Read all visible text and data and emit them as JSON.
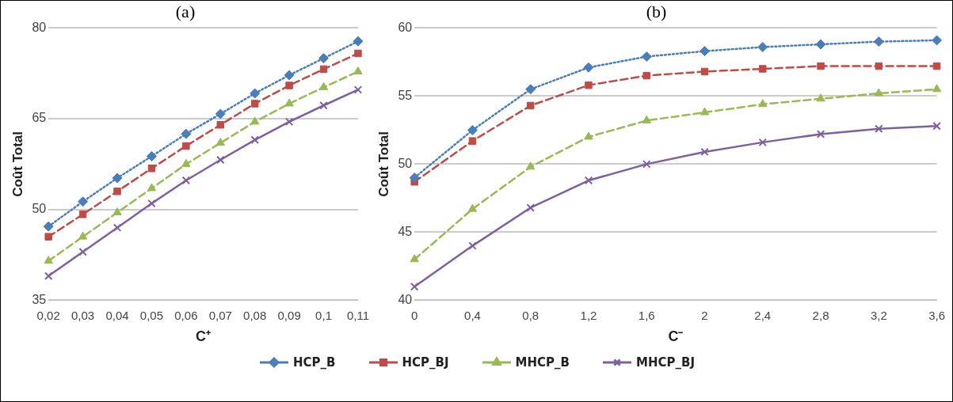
{
  "chart_data": [
    {
      "type": "line",
      "title": "(a)",
      "xlabel": "C⁺",
      "ylabel": "Coût Total",
      "categories": [
        "0,02",
        "0,03",
        "0,04",
        "0,05",
        "0,06",
        "0,07",
        "0,08",
        "0,09",
        "0,1",
        "0,11"
      ],
      "series": [
        {
          "name": "HCP_B",
          "color": "#4a7ebb",
          "marker": "diamond",
          "line_style": "dotted",
          "values": [
            47.2,
            51.3,
            55.2,
            58.8,
            62.5,
            65.8,
            69.2,
            72.2,
            75,
            77.8
          ]
        },
        {
          "name": "HCP_BJ",
          "color": "#be4b48",
          "marker": "square",
          "line_style": "dashed",
          "values": [
            45.5,
            49.2,
            53,
            56.8,
            60.5,
            64,
            67.5,
            70.5,
            73.2,
            75.8
          ]
        },
        {
          "name": "MHCP_B",
          "color": "#98b954",
          "marker": "triangle",
          "line_style": "dashed",
          "values": [
            41.5,
            45.5,
            49.5,
            53.5,
            57.5,
            61,
            64.5,
            67.5,
            70.2,
            72.8
          ]
        },
        {
          "name": "MHCP_BJ",
          "color": "#7d60a0",
          "marker": "cross",
          "line_style": "solid",
          "values": [
            39,
            43,
            47,
            51,
            54.8,
            58.2,
            61.5,
            64.5,
            67.2,
            69.8
          ]
        }
      ],
      "ylim": [
        35,
        80
      ],
      "yticks": [
        35,
        50,
        65,
        80
      ],
      "grid": "y",
      "legend": "bottom"
    },
    {
      "type": "line",
      "title": "(b)",
      "xlabel": "C⁻",
      "ylabel": "Coût Total",
      "categories": [
        "0",
        "0,4",
        "0,8",
        "1,2",
        "1,6",
        "2",
        "2,4",
        "2,8",
        "3,2",
        "3,6"
      ],
      "series": [
        {
          "name": "HCP_B",
          "color": "#4a7ebb",
          "marker": "diamond",
          "line_style": "dotted",
          "values": [
            49,
            52.5,
            55.5,
            57.1,
            57.9,
            58.3,
            58.6,
            58.8,
            59,
            59.1
          ]
        },
        {
          "name": "HCP_BJ",
          "color": "#be4b48",
          "marker": "square",
          "line_style": "dashed",
          "values": [
            48.7,
            51.7,
            54.3,
            55.8,
            56.5,
            56.8,
            57,
            57.2,
            57.2,
            57.2
          ]
        },
        {
          "name": "MHCP_B",
          "color": "#98b954",
          "marker": "triangle",
          "line_style": "dashed",
          "values": [
            43,
            46.7,
            49.8,
            52,
            53.2,
            53.8,
            54.4,
            54.8,
            55.2,
            55.5
          ]
        },
        {
          "name": "MHCP_BJ",
          "color": "#7d60a0",
          "marker": "cross",
          "line_style": "solid",
          "values": [
            41,
            44,
            46.8,
            48.8,
            50,
            50.9,
            51.6,
            52.2,
            52.6,
            52.8
          ]
        }
      ],
      "ylim": [
        40,
        60
      ],
      "yticks": [
        40,
        45,
        50,
        55,
        60
      ],
      "grid": "y",
      "legend": "bottom"
    }
  ]
}
